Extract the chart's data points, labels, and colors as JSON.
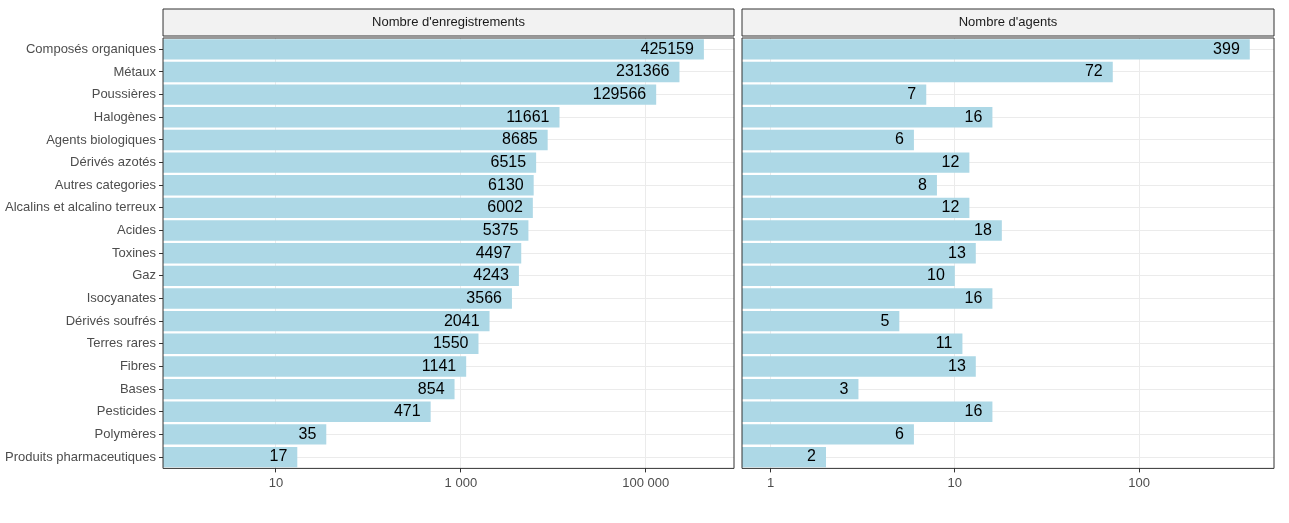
{
  "chart_data": [
    {
      "type": "bar",
      "orientation": "horizontal",
      "title": "Nombre d'enregistrements",
      "log": "x",
      "grid": true,
      "data_labels": true,
      "color": "#add8e6",
      "categories": [
        "Composés organiques",
        "Métaux",
        "Poussières",
        "Halogènes",
        "Agents biologiques",
        "Dérivés azotés",
        "Autres categories",
        "Alcalins et alcalino terreux",
        "Acides",
        "Toxines",
        "Gaz",
        "Isocyanates",
        "Dérivés soufrés",
        "Terres rares",
        "Fibres",
        "Bases",
        "Pesticides",
        "Polymères",
        "Produits pharmaceutiques"
      ],
      "values": [
        425159,
        231366,
        129566,
        11661,
        8685,
        6515,
        6130,
        6002,
        5375,
        4497,
        4243,
        3566,
        2041,
        1550,
        1141,
        854,
        471,
        35,
        17
      ],
      "xlim": [
        0.6,
        900000
      ],
      "xticks": [
        10,
        {
          "value": 1000,
          "label": "1 000"
        },
        {
          "value": 100000,
          "label": "100 000"
        }
      ]
    },
    {
      "type": "bar",
      "orientation": "horizontal",
      "title": "Nombre d'agents",
      "log": "x",
      "grid": true,
      "data_labels": true,
      "color": "#add8e6",
      "tick_labels": "x",
      "categories": [
        null,
        null,
        null,
        null,
        null,
        null,
        null,
        null,
        null,
        null,
        null,
        null,
        null,
        null,
        null,
        null,
        null,
        null,
        null
      ],
      "values": [
        399,
        72,
        7,
        16,
        6,
        12,
        8,
        12,
        18,
        13,
        10,
        16,
        5,
        11,
        13,
        3,
        16,
        6,
        2
      ],
      "xlim": [
        0.72,
        540
      ],
      "xticks": [
        1,
        10,
        100
      ]
    }
  ]
}
